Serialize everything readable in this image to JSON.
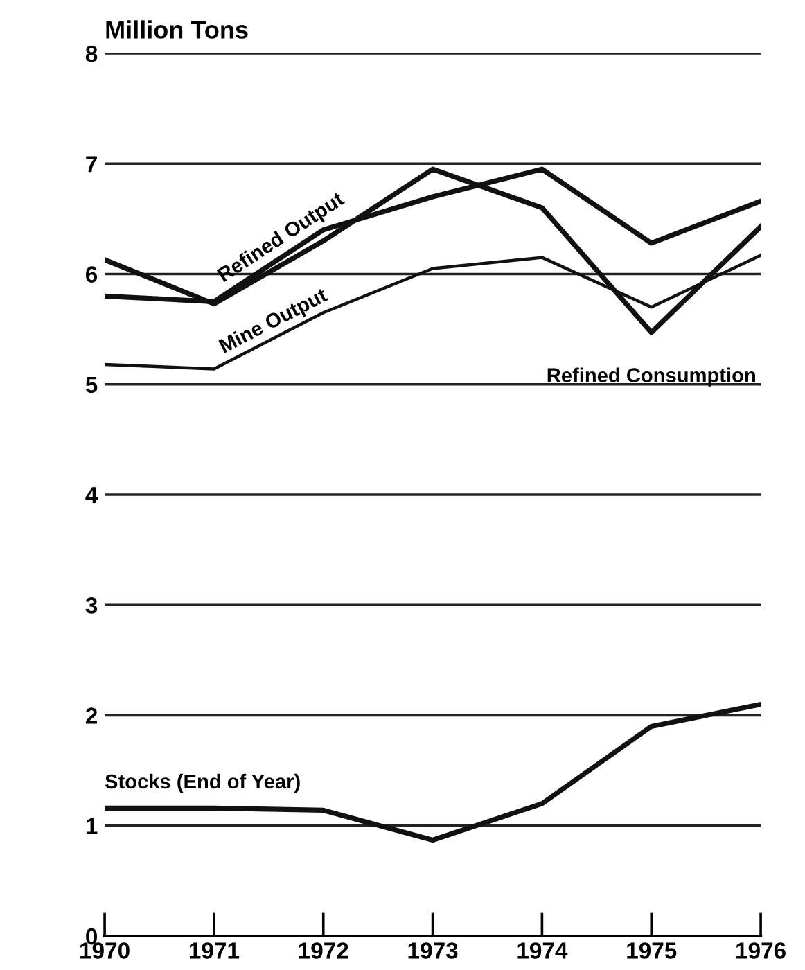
{
  "chart_data": {
    "type": "line",
    "ylabel": "Million Tons",
    "x": [
      1970,
      1971,
      1972,
      1973,
      1974,
      1975,
      1976
    ],
    "series": [
      {
        "name": "Refined Output",
        "color": "#111111",
        "values": [
          5.8,
          5.75,
          6.4,
          6.7,
          6.95,
          6.28,
          6.66
        ]
      },
      {
        "name": "Refined Consumption",
        "color": "#111111",
        "values": [
          6.13,
          5.73,
          6.3,
          6.95,
          6.6,
          5.47,
          6.43
        ]
      },
      {
        "name": "Mine Output",
        "color": "#111111",
        "values": [
          5.18,
          5.14,
          5.65,
          6.05,
          6.15,
          5.7,
          6.17
        ]
      },
      {
        "name": "Stocks (End of Year)",
        "color": "#111111",
        "values": [
          1.16,
          1.16,
          1.14,
          0.87,
          1.2,
          1.9,
          2.1
        ]
      }
    ],
    "xlim": [
      1970,
      1976
    ],
    "xticks": [
      1970,
      1971,
      1972,
      1973,
      1974,
      1975,
      1976
    ],
    "ylim": [
      0,
      8
    ],
    "yticks": [
      0,
      1,
      2,
      3,
      4,
      5,
      6,
      7,
      8
    ],
    "grid": "y",
    "line_style": "solid",
    "marker": "none",
    "legend": false
  }
}
